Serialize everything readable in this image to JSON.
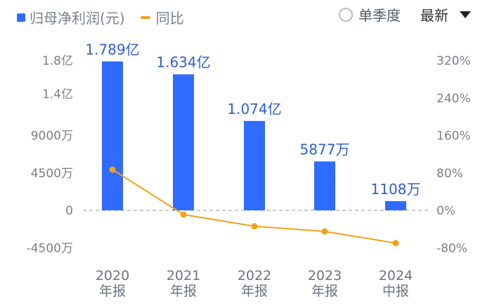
{
  "legend": {
    "bar_label": "归母净利润(元)",
    "line_label": "同比"
  },
  "controls": {
    "radio_label": "单季度",
    "dropdown_label": "最新"
  },
  "colors": {
    "bar": "#2f6bff",
    "line": "#f2a21b",
    "data_label": "#2f5fd6",
    "tick": "#7a7f8a",
    "zero_line": "#b5b9c2"
  },
  "chart_data": {
    "type": "bar",
    "categories": [
      "2020\n年报",
      "2021\n年报",
      "2022\n年报",
      "2023\n年报",
      "2024\n中报"
    ],
    "series": [
      {
        "name": "归母净利润(元)",
        "type": "bar",
        "axis": "left",
        "values": [
          178900000,
          163400000,
          107400000,
          58770000,
          11080000
        ],
        "labels": [
          "1.789亿",
          "1.634亿",
          "1.074亿",
          "5877万",
          "1108万"
        ]
      },
      {
        "name": "同比",
        "type": "line",
        "axis": "right",
        "values": [
          87,
          -9,
          -34,
          -45,
          -70
        ]
      }
    ],
    "left_axis": {
      "ylim": [
        -45000000,
        180000000
      ],
      "ticks": [
        180000000,
        140000000,
        90000000,
        45000000,
        0,
        -45000000
      ],
      "tick_labels": [
        "1.8亿",
        "1.4亿",
        "9000万",
        "4500万",
        "0",
        "-4500万"
      ]
    },
    "right_axis": {
      "ylim": [
        -80,
        320
      ],
      "ticks": [
        320,
        240,
        160,
        80,
        0,
        -80
      ],
      "tick_labels": [
        "320%",
        "240%",
        "160%",
        "80%",
        "0%",
        "-80%"
      ]
    },
    "grid": false,
    "legend_position": "top-left"
  }
}
